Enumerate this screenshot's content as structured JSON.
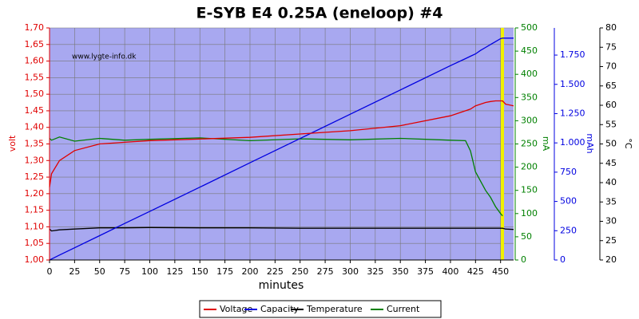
{
  "chart_data": {
    "type": "line",
    "title": "E-SYB E4 0.25A (eneloop) #4",
    "watermark": "www.lygte-info.dk",
    "xlabel": "minutes",
    "ylabel": "volt",
    "y2label": "mA",
    "y3label": "mAh",
    "y4label": "°C",
    "x": [
      0,
      2,
      10,
      25,
      50,
      75,
      100,
      150,
      200,
      250,
      300,
      350,
      400,
      415,
      420,
      425,
      430,
      435,
      440,
      445,
      450,
      452,
      455,
      463
    ],
    "xlim": [
      0,
      463
    ],
    "xticks": [
      0,
      25,
      50,
      75,
      100,
      125,
      150,
      175,
      200,
      225,
      250,
      275,
      300,
      325,
      350,
      375,
      400,
      425,
      450
    ],
    "ylim": [
      1.0,
      1.7
    ],
    "yticks": [
      {
        "value": 1.0,
        "label": "1,00"
      },
      {
        "value": 1.05,
        "label": "1,05"
      },
      {
        "value": 1.1,
        "label": "1,10"
      },
      {
        "value": 1.15,
        "label": "1,15"
      },
      {
        "value": 1.2,
        "label": "1,20"
      },
      {
        "value": 1.25,
        "label": "1,25"
      },
      {
        "value": 1.3,
        "label": "1,30"
      },
      {
        "value": 1.35,
        "label": "1,35"
      },
      {
        "value": 1.4,
        "label": "1,40"
      },
      {
        "value": 1.45,
        "label": "1,45"
      },
      {
        "value": 1.5,
        "label": "1,50"
      },
      {
        "value": 1.55,
        "label": "1,55"
      },
      {
        "value": 1.6,
        "label": "1,60"
      },
      {
        "value": 1.65,
        "label": "1,65"
      },
      {
        "value": 1.7,
        "label": "1,70"
      }
    ],
    "y2lim": [
      0,
      500
    ],
    "y2ticks": [
      0,
      50,
      100,
      150,
      200,
      250,
      300,
      350,
      400,
      450,
      500
    ],
    "y3lim": [
      0,
      1982
    ],
    "y3ticks": [
      0,
      250,
      500,
      750,
      {
        "value": 1000,
        "label": "1.000"
      },
      {
        "value": 1250,
        "label": "1.250"
      },
      {
        "value": 1500,
        "label": "1.500"
      },
      {
        "value": 1750,
        "label": "1.750"
      }
    ],
    "y4lim": [
      20,
      80
    ],
    "y4ticks": [
      20,
      25,
      30,
      35,
      40,
      45,
      50,
      55,
      60,
      65,
      70,
      75,
      80
    ],
    "axis_colors": {
      "y": "#e00000",
      "y2": "#008000",
      "y3": "#0000e0",
      "y4": "#000000"
    },
    "grid": true,
    "legend": "bottom",
    "series": [
      {
        "name": "Voltage",
        "color": "#e00000",
        "axis": "y",
        "values": [
          1.22,
          1.26,
          1.3,
          1.33,
          1.35,
          1.355,
          1.36,
          1.365,
          1.37,
          1.38,
          1.39,
          1.405,
          1.435,
          1.45,
          1.455,
          1.465,
          1.47,
          1.475,
          1.478,
          1.48,
          1.48,
          1.48,
          1.47,
          1.465
        ]
      },
      {
        "name": "Capacity",
        "color": "#0000e0",
        "axis": "y3",
        "values": [
          0,
          8,
          42,
          104,
          208,
          312,
          415,
          622,
          830,
          1037,
          1245,
          1452,
          1660,
          1720,
          1740,
          1760,
          1790,
          1815,
          1840,
          1865,
          1890,
          1895,
          1895,
          1895
        ]
      },
      {
        "name": "Temperature",
        "color": "#000000",
        "axis": "y4",
        "values": [
          28.0,
          27.5,
          27.8,
          28.0,
          28.3,
          28.3,
          28.4,
          28.3,
          28.3,
          28.2,
          28.2,
          28.2,
          28.2,
          28.2,
          28.2,
          28.2,
          28.2,
          28.2,
          28.2,
          28.2,
          28.2,
          28.2,
          28.0,
          27.9
        ]
      },
      {
        "name": "Current",
        "color": "#008000",
        "axis": "y2",
        "values": [
          262,
          258,
          265,
          256,
          262,
          258,
          260,
          263,
          257,
          261,
          259,
          262,
          258,
          257,
          235,
          190,
          170,
          150,
          135,
          115,
          100,
          95,
          null,
          null
        ]
      }
    ]
  }
}
